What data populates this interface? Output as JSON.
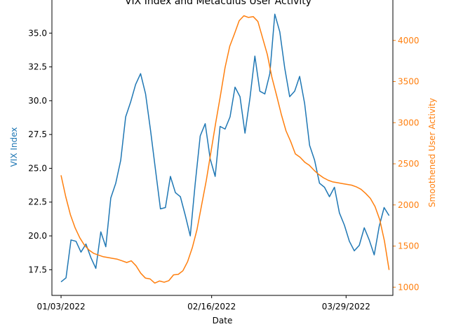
{
  "chart_data": {
    "type": "line",
    "title": "VIX Index and Metaculus User Activity",
    "xlabel": "Date",
    "x_tick_labels": [
      "01/03/2022",
      "02/16/2022",
      "03/29/2022"
    ],
    "grid": false,
    "colors": {
      "vix": "#1f77b4",
      "activity": "#ff7f0e",
      "axis": "#000000"
    },
    "left_axis": {
      "label": "VIX Index",
      "ylim": [
        15.6,
        37.5
      ],
      "ticks": [
        17.5,
        20.0,
        22.5,
        25.0,
        27.5,
        30.0,
        32.5,
        35.0
      ],
      "tick_labels": [
        "17.5",
        "20.0",
        "22.5",
        "25.0",
        "27.5",
        "30.0",
        "32.5",
        "35.0"
      ]
    },
    "right_axis": {
      "label": "Smoothened User Activity",
      "ylim": [
        900,
        4500
      ],
      "ticks": [
        1000,
        1500,
        2000,
        2500,
        3000,
        3500,
        4000
      ],
      "tick_labels": [
        "1000",
        "1500",
        "2000",
        "2500",
        "3000",
        "3500",
        "4000"
      ]
    },
    "x_index_range": [
      -1.7,
      61.7
    ],
    "x_tick_index": [
      0,
      28,
      53
    ],
    "series": [
      {
        "axis": "left",
        "values": [
          16.6,
          16.9,
          19.7,
          19.6,
          18.8,
          19.4,
          18.4,
          17.6,
          20.3,
          19.2,
          22.8,
          23.9,
          25.6,
          28.8,
          29.9,
          31.2,
          32.0,
          30.5,
          27.8,
          24.9,
          22.0,
          22.1,
          24.4,
          23.2,
          22.9,
          21.5,
          20.0,
          23.9,
          27.4,
          28.3,
          25.7,
          24.4,
          28.1,
          27.9,
          28.8,
          31.0,
          30.3,
          27.6,
          30.2,
          33.3,
          30.7,
          30.5,
          32.0,
          36.4,
          35.1,
          32.4,
          30.3,
          30.7,
          31.8,
          29.8,
          26.7,
          25.6,
          23.9,
          23.6,
          22.9,
          23.6,
          21.7,
          20.8,
          19.6,
          18.9,
          19.3,
          20.6,
          19.7,
          18.6,
          20.7,
          22.1,
          21.5
        ]
      },
      {
        "axis": "right",
        "values": [
          2360,
          2100,
          1880,
          1720,
          1600,
          1510,
          1450,
          1410,
          1390,
          1370,
          1360,
          1350,
          1340,
          1320,
          1300,
          1320,
          1260,
          1170,
          1110,
          1100,
          1050,
          1075,
          1060,
          1080,
          1150,
          1155,
          1200,
          1310,
          1480,
          1700,
          2000,
          2300,
          2650,
          3000,
          3330,
          3670,
          3930,
          4080,
          4240,
          4300,
          4280,
          4290,
          4230,
          4030,
          3830,
          3550,
          3330,
          3100,
          2900,
          2770,
          2620,
          2580,
          2520,
          2480,
          2420,
          2370,
          2330,
          2300,
          2280,
          2270,
          2260,
          2250,
          2240,
          2220,
          2190,
          2140,
          2080,
          1980,
          1820,
          1560,
          1210
        ]
      }
    ]
  }
}
